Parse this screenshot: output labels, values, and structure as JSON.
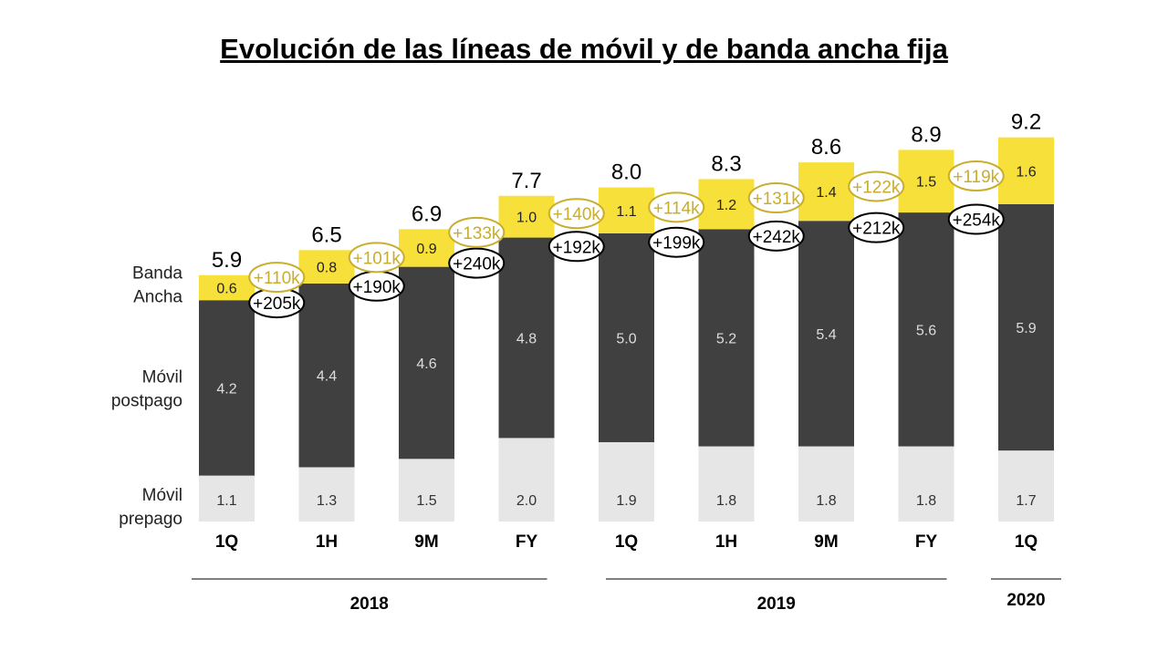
{
  "title": "Evolución de las líneas de móvil y de banda ancha fija",
  "colors": {
    "prepago": "#e6e6e6",
    "postpago": "#404040",
    "banda_ancha": "#f8e03a",
    "growth_yellow": "#c9ad2c",
    "growth_black": "#000000"
  },
  "chart_data": {
    "type": "bar",
    "stacked": true,
    "categories": [
      "1Q",
      "1H",
      "9M",
      "FY",
      "1Q",
      "1H",
      "9M",
      "FY",
      "1Q"
    ],
    "year_groups": [
      {
        "label": "2018",
        "start": 0,
        "end": 3
      },
      {
        "label": "2019",
        "start": 4,
        "end": 7
      },
      {
        "label": "2020",
        "start": 8,
        "end": 8
      }
    ],
    "series": [
      {
        "name": "Móvil prepago",
        "values": [
          1.1,
          1.3,
          1.5,
          2.0,
          1.9,
          1.8,
          1.8,
          1.8,
          1.7
        ],
        "labels": [
          "1.1",
          "1.3",
          "1.5",
          "2.0",
          "1.9",
          "1.8",
          "1.8",
          "1.8",
          "1.7"
        ]
      },
      {
        "name": "Móvil postpago",
        "values": [
          4.2,
          4.4,
          4.6,
          4.8,
          5.0,
          5.2,
          5.4,
          5.6,
          5.9
        ],
        "labels": [
          "4.2",
          "4.4",
          "4.6",
          "4.8",
          "5.0",
          "5.2",
          "5.4",
          "5.6",
          "5.9"
        ]
      },
      {
        "name": "Banda Ancha",
        "values": [
          0.6,
          0.8,
          0.9,
          1.0,
          1.1,
          1.2,
          1.4,
          1.5,
          1.6
        ],
        "labels": [
          "0.6",
          "0.8",
          "0.9",
          "1.0",
          "1.1",
          "1.2",
          "1.4",
          "1.5",
          "1.6"
        ]
      }
    ],
    "totals": [
      "5.9",
      "6.5",
      "6.9",
      "7.7",
      "8.0",
      "8.3",
      "8.6",
      "8.9",
      "9.2"
    ],
    "legend": [
      {
        "series": 2,
        "lines": [
          "Banda",
          "Ancha"
        ]
      },
      {
        "series": 1,
        "lines": [
          "Móvil",
          "postpago"
        ]
      },
      {
        "series": 0,
        "lines": [
          "Móvil",
          "prepago"
        ]
      }
    ],
    "growth_banda_ancha": [
      "+110k",
      "+101k",
      "+133k",
      "+140k",
      "+114k",
      "+131k",
      "+122k",
      "+119k"
    ],
    "growth_postpago": [
      "+205k",
      "+190k",
      "+240k",
      "+192k",
      "+199k",
      "+242k",
      "+212k",
      "+254k"
    ],
    "ylim": [
      0,
      10
    ]
  }
}
